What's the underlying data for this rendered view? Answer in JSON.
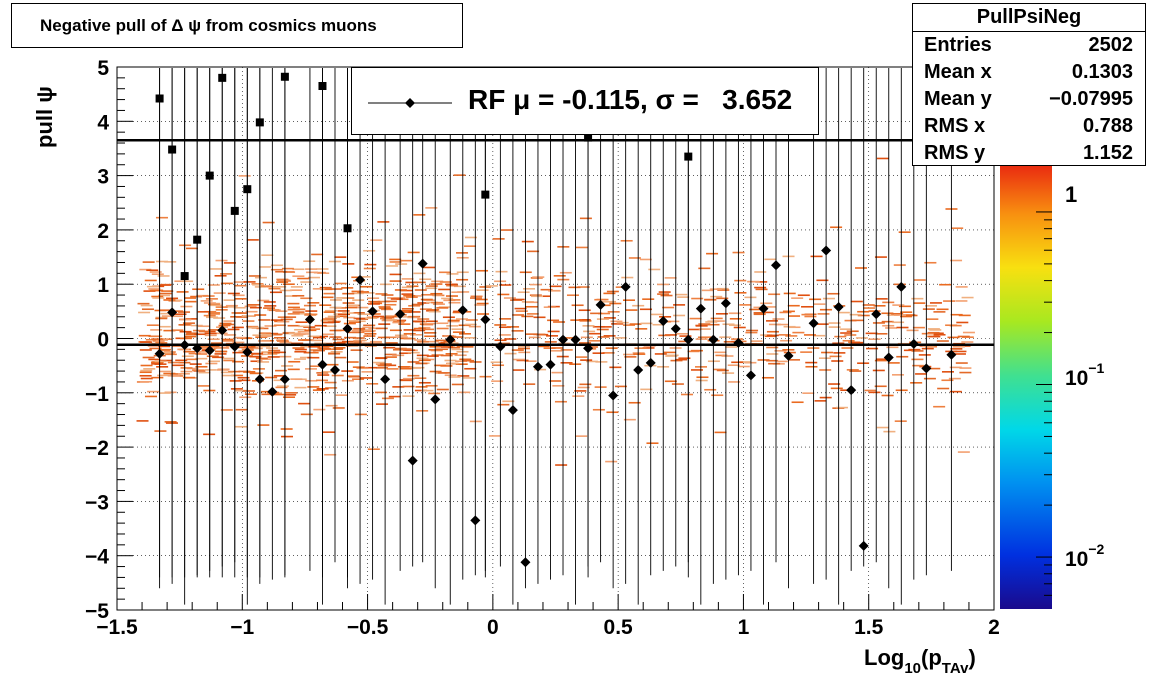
{
  "title": "Negative pull of Δ ψ from cosmics muons",
  "stats": {
    "name": "PullPsiNeg",
    "rows": [
      {
        "label": "Entries",
        "value": "2502"
      },
      {
        "label": "Mean x",
        "value": "0.1303"
      },
      {
        "label": "Mean y",
        "value": "−0.07995"
      },
      {
        "label": "RMS x",
        "value": "0.788"
      },
      {
        "label": "RMS y",
        "value": "1.152"
      }
    ]
  },
  "legend": {
    "label": "RF μ = -0.115, σ =   3.652"
  },
  "colors": {
    "profile": "#000000",
    "band_line": "#000000",
    "hist_cells": "#f06018"
  },
  "chart_data": {
    "type": "heatmap",
    "xlabel_main": "Log",
    "xlabel_sub1": "10",
    "xlabel_mid": "(p",
    "xlabel_sub2": "TAv",
    "xlabel_end": ")",
    "ylabel": "pull ψ",
    "xlim": [
      -1.5,
      2.0
    ],
    "ylim": [
      -5,
      5
    ],
    "xticks": [
      {
        "v": -1.5,
        "l": "−1.5"
      },
      {
        "v": -1.0,
        "l": "−1"
      },
      {
        "v": -0.5,
        "l": "−0.5"
      },
      {
        "v": 0,
        "l": "0"
      },
      {
        "v": 0.5,
        "l": "0.5"
      },
      {
        "v": 1.0,
        "l": "1"
      },
      {
        "v": 1.5,
        "l": "1.5"
      },
      {
        "v": 2.0,
        "l": "2"
      }
    ],
    "yticks": [
      {
        "v": 5,
        "l": "5"
      },
      {
        "v": 4,
        "l": "4"
      },
      {
        "v": 3,
        "l": "3"
      },
      {
        "v": 2,
        "l": "2"
      },
      {
        "v": 1,
        "l": "1"
      },
      {
        "v": 0,
        "l": "0"
      },
      {
        "v": -1,
        "l": "−1"
      },
      {
        "v": -2,
        "l": "−2"
      },
      {
        "v": -3,
        "l": "−3"
      },
      {
        "v": -4,
        "l": "−4"
      },
      {
        "v": -5,
        "l": "−5"
      }
    ],
    "grid": true,
    "hlines": [
      -0.115,
      3.652
    ],
    "profile_points": [
      [
        -1.33,
        -0.28
      ],
      [
        -1.28,
        0.48
      ],
      [
        -1.23,
        -0.12
      ],
      [
        -1.18,
        -0.18
      ],
      [
        -1.13,
        -0.22
      ],
      [
        -1.08,
        0.15
      ],
      [
        -1.03,
        -0.15
      ],
      [
        -0.98,
        -0.25
      ],
      [
        -0.93,
        -0.75
      ],
      [
        -0.88,
        -0.98
      ],
      [
        -0.83,
        -0.75
      ],
      [
        -0.73,
        0.35
      ],
      [
        -0.68,
        -0.48
      ],
      [
        -0.63,
        -0.58
      ],
      [
        -0.58,
        0.18
      ],
      [
        -0.53,
        1.08
      ],
      [
        -0.48,
        0.5
      ],
      [
        -0.43,
        -0.75
      ],
      [
        -0.37,
        0.45
      ],
      [
        -0.32,
        -2.25
      ],
      [
        -0.28,
        1.38
      ],
      [
        -0.23,
        -1.12
      ],
      [
        -0.17,
        -0.02
      ],
      [
        -0.12,
        0.52
      ],
      [
        -0.07,
        -3.35
      ],
      [
        -0.03,
        0.35
      ],
      [
        0.03,
        -0.15
      ],
      [
        0.08,
        -1.32
      ],
      [
        0.13,
        -4.12
      ],
      [
        0.18,
        -0.52
      ],
      [
        0.23,
        -0.48
      ],
      [
        0.28,
        -0.02
      ],
      [
        0.33,
        -0.02
      ],
      [
        0.38,
        -0.18
      ],
      [
        0.43,
        0.62
      ],
      [
        0.48,
        -1.05
      ],
      [
        0.53,
        0.95
      ],
      [
        0.58,
        -0.58
      ],
      [
        0.63,
        -0.45
      ],
      [
        0.68,
        0.32
      ],
      [
        0.73,
        0.18
      ],
      [
        0.78,
        -0.02
      ],
      [
        0.83,
        0.55
      ],
      [
        0.88,
        -0.02
      ],
      [
        0.93,
        0.65
      ],
      [
        0.98,
        -0.08
      ],
      [
        1.03,
        -0.68
      ],
      [
        1.08,
        0.55
      ],
      [
        1.13,
        1.35
      ],
      [
        1.18,
        -0.32
      ],
      [
        1.28,
        0.28
      ],
      [
        1.33,
        1.62
      ],
      [
        1.38,
        0.58
      ],
      [
        1.43,
        -0.95
      ],
      [
        1.48,
        -3.82
      ],
      [
        1.53,
        0.45
      ],
      [
        1.58,
        -0.35
      ],
      [
        1.63,
        0.95
      ],
      [
        1.68,
        -0.1
      ],
      [
        1.73,
        -0.55
      ],
      [
        1.83,
        -0.3
      ]
    ],
    "square_points": [
      [
        -1.33,
        4.42
      ],
      [
        -1.28,
        3.48
      ],
      [
        -1.23,
        1.15
      ],
      [
        -1.18,
        1.82
      ],
      [
        -1.13,
        3.0
      ],
      [
        -1.08,
        4.8
      ],
      [
        -1.03,
        2.35
      ],
      [
        -0.98,
        2.75
      ],
      [
        -0.93,
        3.98
      ],
      [
        -0.83,
        4.82
      ],
      [
        -0.68,
        4.65
      ],
      [
        -0.58,
        2.03
      ],
      [
        -0.03,
        2.65
      ],
      [
        0.38,
        3.7
      ],
      [
        0.78,
        3.35
      ]
    ],
    "colorbar": {
      "label_top": "1",
      "label_mid_base": "10",
      "label_mid_exp": "−1",
      "label_low_base": "10",
      "label_low_exp": "−2",
      "zlim": [
        0.005,
        2.0
      ],
      "scale": "log"
    }
  }
}
